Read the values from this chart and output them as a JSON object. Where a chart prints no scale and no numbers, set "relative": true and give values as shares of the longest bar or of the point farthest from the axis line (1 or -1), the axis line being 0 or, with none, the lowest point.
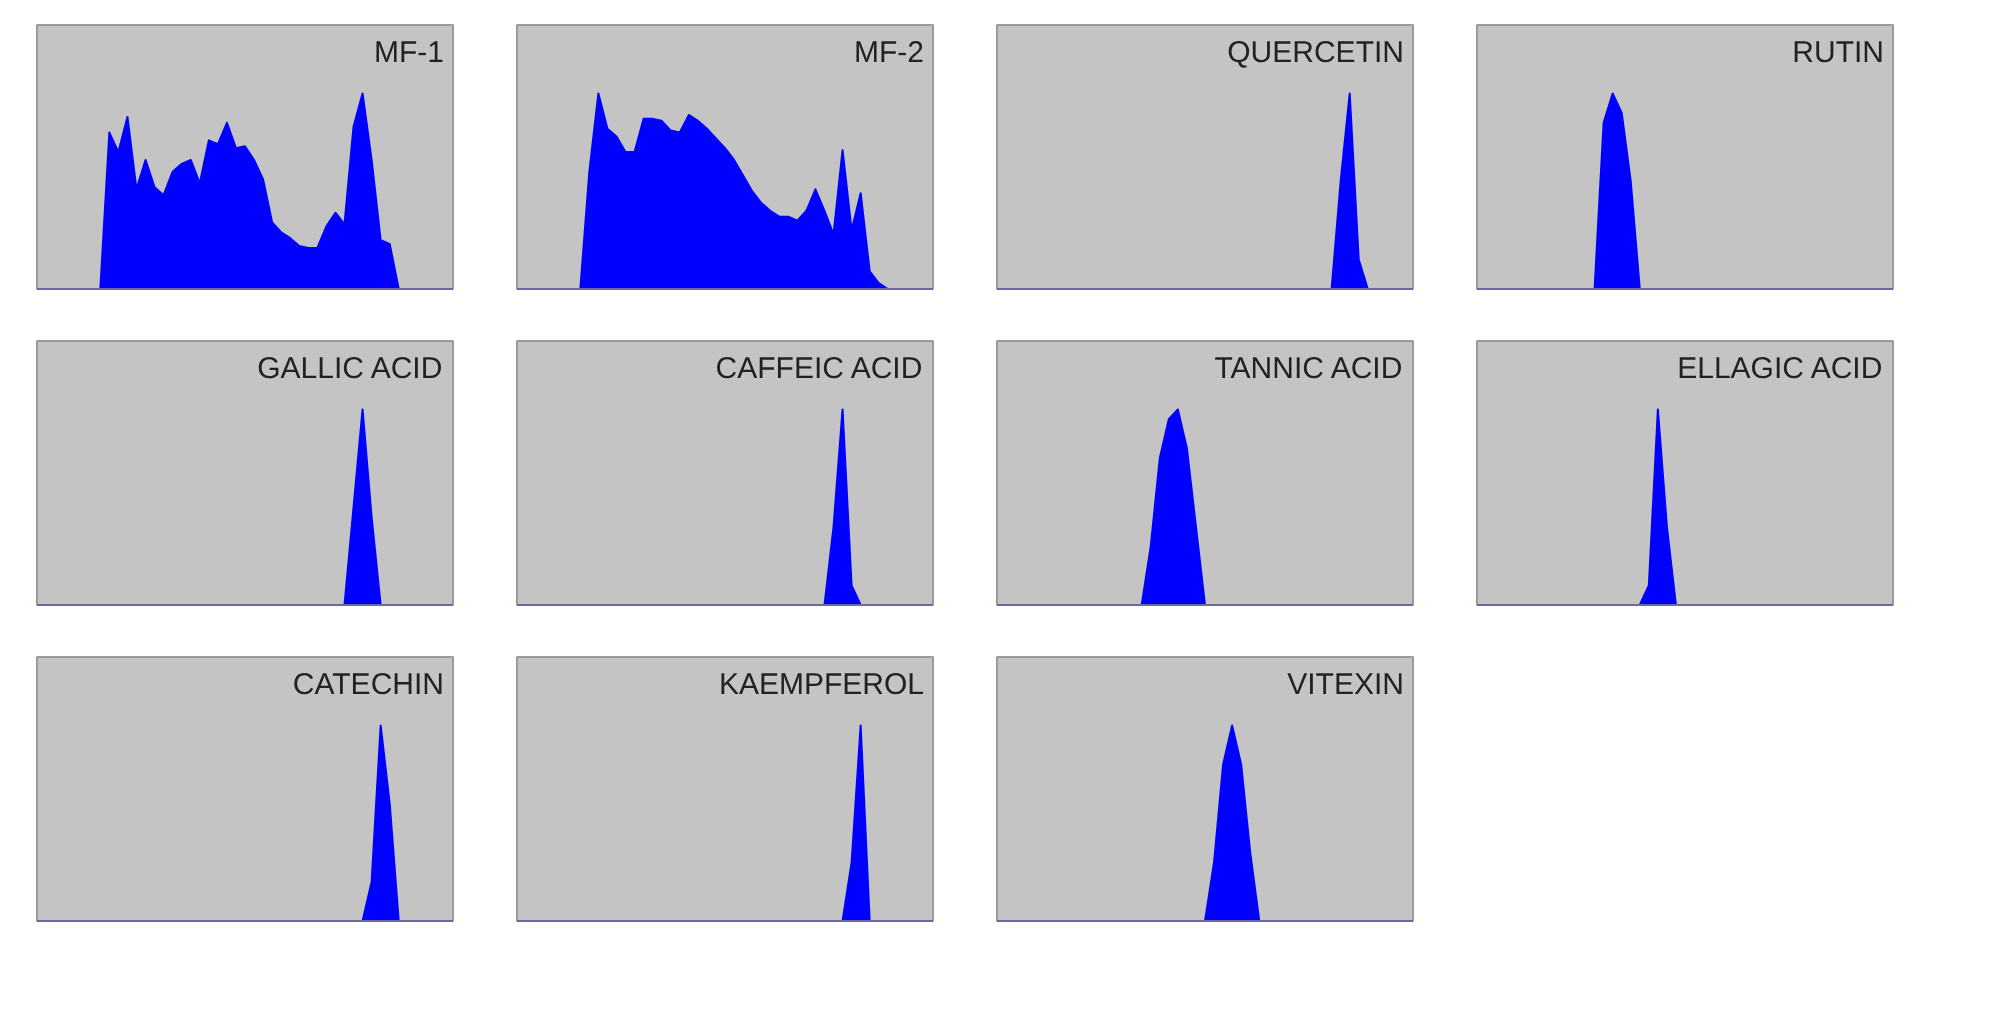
{
  "chart_data": [
    {
      "type": "area",
      "title": "MF-1",
      "relative": true,
      "color": "#0000ff",
      "categories": [
        null,
        null,
        null,
        null,
        null,
        null,
        null,
        null,
        null,
        null,
        null,
        null,
        null,
        null,
        null,
        null,
        null,
        null,
        null,
        null,
        null,
        null,
        null,
        null,
        null,
        null,
        null,
        null,
        null,
        null,
        null,
        null,
        null,
        null,
        null,
        null,
        null,
        null,
        null,
        null
      ],
      "values": [
        0,
        0,
        0,
        0,
        0.8,
        0.7,
        0.88,
        0.51,
        0.66,
        0.52,
        0.48,
        0.6,
        0.64,
        0.66,
        0.54,
        0.76,
        0.74,
        0.85,
        0.72,
        0.73,
        0.66,
        0.56,
        0.34,
        0.29,
        0.26,
        0.22,
        0.21,
        0.21,
        0.32,
        0.39,
        0.33,
        0.83,
        1.0,
        0.66,
        0.25,
        0.23,
        0,
        0,
        0,
        0
      ]
    },
    {
      "type": "area",
      "title": "MF-2",
      "relative": true,
      "color": "#0000ff",
      "categories": [
        null,
        null,
        null,
        null,
        null,
        null,
        null,
        null,
        null,
        null,
        null,
        null,
        null,
        null,
        null,
        null,
        null,
        null,
        null,
        null,
        null,
        null,
        null,
        null,
        null,
        null,
        null,
        null,
        null,
        null,
        null,
        null,
        null,
        null,
        null,
        null,
        null,
        null,
        null,
        null
      ],
      "values": [
        0,
        0,
        0,
        0,
        0.6,
        1.0,
        0.82,
        0.78,
        0.7,
        0.7,
        0.87,
        0.87,
        0.86,
        0.81,
        0.8,
        0.89,
        0.86,
        0.82,
        0.77,
        0.72,
        0.66,
        0.58,
        0.5,
        0.44,
        0.4,
        0.37,
        0.37,
        0.35,
        0.4,
        0.51,
        0.4,
        0.28,
        0.71,
        0.3,
        0.49,
        0.09,
        0.03,
        0,
        0,
        0
      ]
    },
    {
      "type": "area",
      "title": "QUERCETIN",
      "relative": true,
      "color": "#0000ff",
      "categories": [
        null,
        null,
        null,
        null,
        null,
        null,
        null,
        null,
        null,
        null,
        null,
        null,
        null,
        null,
        null,
        null,
        null,
        null,
        null,
        null,
        null,
        null,
        null,
        null,
        null,
        null,
        null,
        null,
        null,
        null,
        null,
        null,
        null,
        null,
        null,
        null,
        null,
        null,
        null,
        null
      ],
      "values": [
        0,
        0,
        0,
        0,
        0,
        0,
        0,
        0,
        0,
        0,
        0,
        0,
        0,
        0,
        0,
        0,
        0,
        0,
        0,
        0,
        0,
        0,
        0,
        0,
        0,
        0,
        0,
        0,
        0,
        0,
        0,
        0,
        0,
        0,
        0.55,
        1.0,
        0.15,
        0,
        0,
        0
      ]
    },
    {
      "type": "area",
      "title": "RUTIN",
      "relative": true,
      "color": "#0000ff",
      "categories": [
        null,
        null,
        null,
        null,
        null,
        null,
        null,
        null,
        null,
        null,
        null,
        null,
        null,
        null,
        null,
        null,
        null,
        null,
        null,
        null,
        null,
        null,
        null,
        null,
        null,
        null,
        null,
        null,
        null,
        null,
        null,
        null,
        null,
        null,
        null,
        null,
        null,
        null,
        null,
        null
      ],
      "values": [
        0,
        0,
        0,
        0,
        0,
        0,
        0,
        0,
        0,
        0,
        0.85,
        1.0,
        0.9,
        0.55,
        0,
        0,
        0,
        0,
        0,
        0,
        0,
        0,
        0,
        0,
        0,
        0,
        0,
        0,
        0,
        0,
        0,
        0,
        0,
        0,
        0,
        0,
        0,
        0,
        0,
        0
      ]
    },
    {
      "type": "area",
      "title": "GALLIC ACID",
      "relative": true,
      "color": "#0000ff",
      "categories": [
        null,
        null,
        null,
        null,
        null,
        null,
        null,
        null,
        null,
        null,
        null,
        null,
        null,
        null,
        null,
        null,
        null,
        null,
        null,
        null,
        null,
        null,
        null,
        null,
        null,
        null,
        null,
        null,
        null,
        null,
        null,
        null,
        null,
        null,
        null,
        null,
        null,
        null,
        null,
        null
      ],
      "values": [
        0,
        0,
        0,
        0,
        0,
        0,
        0,
        0,
        0,
        0,
        0,
        0,
        0,
        0,
        0,
        0,
        0,
        0,
        0,
        0,
        0,
        0,
        0,
        0,
        0,
        0,
        0,
        0,
        0,
        0,
        0,
        0.5,
        1.0,
        0.45,
        0,
        0,
        0,
        0,
        0,
        0
      ]
    },
    {
      "type": "area",
      "title": "CAFFEIC ACID",
      "relative": true,
      "color": "#0000ff",
      "categories": [
        null,
        null,
        null,
        null,
        null,
        null,
        null,
        null,
        null,
        null,
        null,
        null,
        null,
        null,
        null,
        null,
        null,
        null,
        null,
        null,
        null,
        null,
        null,
        null,
        null,
        null,
        null,
        null,
        null,
        null,
        null,
        null,
        null,
        null,
        null,
        null,
        null,
        null,
        null,
        null
      ],
      "values": [
        0,
        0,
        0,
        0,
        0,
        0,
        0,
        0,
        0,
        0,
        0,
        0,
        0,
        0,
        0,
        0,
        0,
        0,
        0,
        0,
        0,
        0,
        0,
        0,
        0,
        0,
        0,
        0,
        0,
        0,
        0,
        0.4,
        1.0,
        0.1,
        0,
        0,
        0,
        0,
        0,
        0
      ]
    },
    {
      "type": "area",
      "title": "TANNIC ACID",
      "relative": true,
      "color": "#0000ff",
      "categories": [
        null,
        null,
        null,
        null,
        null,
        null,
        null,
        null,
        null,
        null,
        null,
        null,
        null,
        null,
        null,
        null,
        null,
        null,
        null,
        null,
        null,
        null,
        null,
        null,
        null,
        null,
        null,
        null,
        null,
        null,
        null,
        null,
        null,
        null,
        null,
        null,
        null,
        null,
        null,
        null
      ],
      "values": [
        0,
        0,
        0,
        0,
        0,
        0,
        0,
        0,
        0,
        0,
        0,
        0,
        0,
        0.3,
        0.75,
        0.95,
        1.0,
        0.8,
        0.4,
        0,
        0,
        0,
        0,
        0,
        0,
        0,
        0,
        0,
        0,
        0,
        0,
        0,
        0,
        0,
        0,
        0,
        0,
        0,
        0,
        0
      ]
    },
    {
      "type": "area",
      "title": "ELLAGIC ACID",
      "relative": true,
      "color": "#0000ff",
      "categories": [
        null,
        null,
        null,
        null,
        null,
        null,
        null,
        null,
        null,
        null,
        null,
        null,
        null,
        null,
        null,
        null,
        null,
        null,
        null,
        null,
        null,
        null,
        null,
        null,
        null,
        null,
        null,
        null,
        null,
        null,
        null,
        null,
        null,
        null,
        null,
        null,
        null,
        null,
        null,
        null
      ],
      "values": [
        0,
        0,
        0,
        0,
        0,
        0,
        0,
        0,
        0,
        0,
        0,
        0,
        0,
        0,
        0,
        0.1,
        1.0,
        0.4,
        0,
        0,
        0,
        0,
        0,
        0,
        0,
        0,
        0,
        0,
        0,
        0,
        0,
        0,
        0,
        0,
        0,
        0,
        0,
        0,
        0,
        0
      ]
    },
    {
      "type": "area",
      "title": "CATECHIN",
      "relative": true,
      "color": "#0000ff",
      "categories": [
        null,
        null,
        null,
        null,
        null,
        null,
        null,
        null,
        null,
        null,
        null,
        null,
        null,
        null,
        null,
        null,
        null,
        null,
        null,
        null,
        null,
        null,
        null,
        null,
        null,
        null,
        null,
        null,
        null,
        null,
        null,
        null,
        null,
        null,
        null,
        null,
        null,
        null,
        null,
        null
      ],
      "values": [
        0,
        0,
        0,
        0,
        0,
        0,
        0,
        0,
        0,
        0,
        0,
        0,
        0,
        0,
        0,
        0,
        0,
        0,
        0,
        0,
        0,
        0,
        0,
        0,
        0,
        0,
        0,
        0,
        0,
        0,
        0,
        0,
        0,
        0.2,
        1.0,
        0.6,
        0,
        0,
        0,
        0
      ]
    },
    {
      "type": "area",
      "title": "KAEMPFEROL",
      "relative": true,
      "color": "#0000ff",
      "categories": [
        null,
        null,
        null,
        null,
        null,
        null,
        null,
        null,
        null,
        null,
        null,
        null,
        null,
        null,
        null,
        null,
        null,
        null,
        null,
        null,
        null,
        null,
        null,
        null,
        null,
        null,
        null,
        null,
        null,
        null,
        null,
        null,
        null,
        null,
        null,
        null,
        null,
        null,
        null,
        null
      ],
      "values": [
        0,
        0,
        0,
        0,
        0,
        0,
        0,
        0,
        0,
        0,
        0,
        0,
        0,
        0,
        0,
        0,
        0,
        0,
        0,
        0,
        0,
        0,
        0,
        0,
        0,
        0,
        0,
        0,
        0,
        0,
        0,
        0,
        0,
        0.3,
        1.0,
        0,
        0,
        0,
        0,
        0
      ]
    },
    {
      "type": "area",
      "title": "VITEXIN",
      "relative": true,
      "color": "#0000ff",
      "categories": [
        null,
        null,
        null,
        null,
        null,
        null,
        null,
        null,
        null,
        null,
        null,
        null,
        null,
        null,
        null,
        null,
        null,
        null,
        null,
        null,
        null,
        null,
        null,
        null,
        null,
        null,
        null,
        null,
        null,
        null,
        null,
        null,
        null,
        null,
        null,
        null,
        null,
        null,
        null,
        null
      ],
      "values": [
        0,
        0,
        0,
        0,
        0,
        0,
        0,
        0,
        0,
        0,
        0,
        0,
        0,
        0,
        0,
        0,
        0,
        0,
        0,
        0,
        0.3,
        0.8,
        1.0,
        0.8,
        0.35,
        0,
        0,
        0,
        0,
        0,
        0,
        0,
        0,
        0,
        0,
        0,
        0,
        0,
        0,
        0
      ]
    }
  ]
}
